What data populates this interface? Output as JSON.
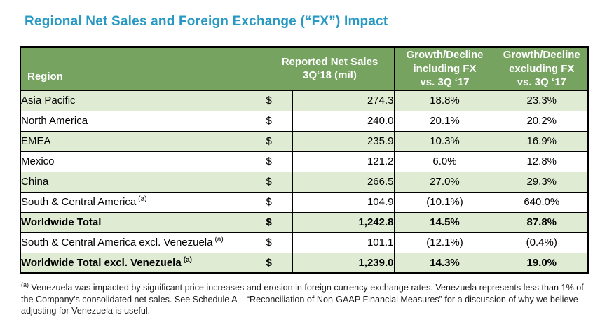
{
  "title": "Regional Net Sales and Foreign Exchange (“FX”) Impact",
  "colors": {
    "title_color": "#2899C2",
    "header_bg": "#76A35F",
    "header_text": "#FFFFFF",
    "row_stripe": "#DFEBD2",
    "border_color": "#000000",
    "footnote_color": "#1A1A1A"
  },
  "table": {
    "headers": {
      "region": "Region",
      "net_sales": "Reported Net Sales\n3Q‘18 (mil)",
      "including_fx": "Growth/Decline\nincluding FX\nvs. 3Q ‘17",
      "excluding_fx": "Growth/Decline\nexcluding FX\nvs. 3Q ‘17"
    },
    "rows": [
      {
        "region": "Asia Pacific",
        "marker": "",
        "currency": "$",
        "net_sales": "274.3",
        "including_fx": "18.8%",
        "excluding_fx": "23.3%"
      },
      {
        "region": "North America",
        "marker": "",
        "currency": "$",
        "net_sales": "240.0",
        "including_fx": "20.1%",
        "excluding_fx": "20.2%"
      },
      {
        "region": "EMEA",
        "marker": "",
        "currency": "$",
        "net_sales": "235.9",
        "including_fx": "10.3%",
        "excluding_fx": "16.9%"
      },
      {
        "region": "Mexico",
        "marker": "",
        "currency": "$",
        "net_sales": "121.2",
        "including_fx": "6.0%",
        "excluding_fx": "12.8%"
      },
      {
        "region": "China",
        "marker": "",
        "currency": "$",
        "net_sales": "266.5",
        "including_fx": "27.0%",
        "excluding_fx": "29.3%"
      },
      {
        "region": "South & Central America",
        "marker": "(a)",
        "currency": "$",
        "net_sales": "104.9",
        "including_fx": "(10.1%)",
        "excluding_fx": "640.0%"
      },
      {
        "region": "Worldwide Total",
        "marker": "",
        "currency": "$",
        "net_sales": "1,242.8",
        "including_fx": "14.5%",
        "excluding_fx": "87.8%"
      },
      {
        "region": "South & Central America excl. Venezuela",
        "marker": "(a)",
        "currency": "$",
        "net_sales": "101.1",
        "including_fx": "(12.1%)",
        "excluding_fx": "(0.4%)"
      },
      {
        "region": "Worldwide Total excl. Venezuela",
        "marker": "(a)",
        "currency": "$",
        "net_sales": "1,239.0",
        "including_fx": "14.3%",
        "excluding_fx": "19.0%"
      }
    ]
  },
  "footnote": {
    "marker": "(a)",
    "text": " Venezuela was impacted by significant price increases and erosion in foreign currency exchange rates. Venezuela represents less than 1% of the Company’s consolidated net sales.  See Schedule A – “Reconciliation of Non-GAAP Financial Measures” for a discussion of why we believe adjusting for Venezuela is useful."
  }
}
